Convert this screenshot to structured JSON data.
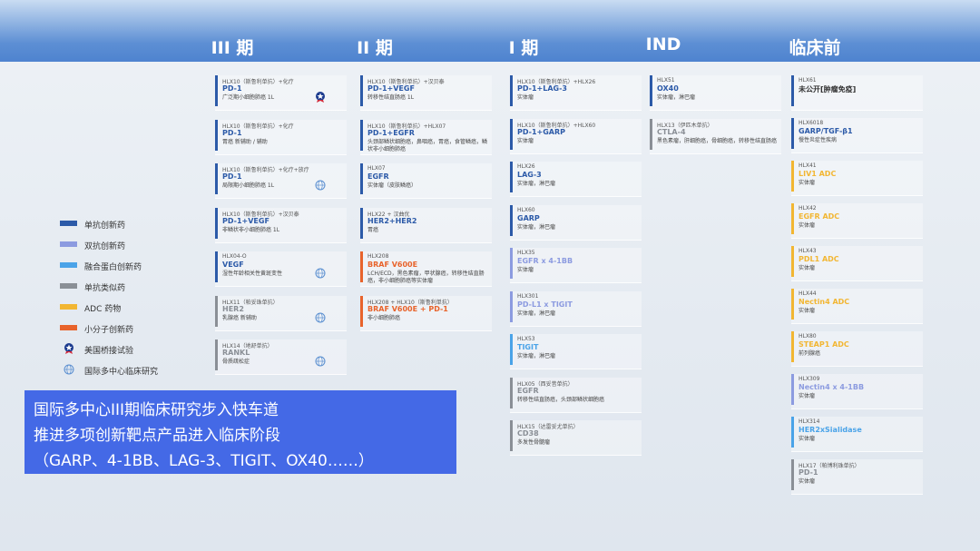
{
  "phases": [
    {
      "title": "III 期",
      "cards": [
        {
          "name": "HLX10（斯鲁利单抗）+化疗",
          "target": "PD-1",
          "indication": "广泛期小细胞肺癌 1L",
          "color": "#2c5aa8",
          "badge": "bridge"
        },
        {
          "name": "HLX10（斯鲁利单抗）+化疗",
          "target": "PD-1",
          "indication": "胃癌 新辅助 / 辅助",
          "color": "#2c5aa8"
        },
        {
          "name": "HLX10（斯鲁利单抗）+化疗+放疗",
          "target": "PD-1",
          "indication": "局限期小细胞肺癌 1L",
          "color": "#2c5aa8",
          "badge": "intl"
        },
        {
          "name": "HLX10（斯鲁利单抗）+汉贝泰",
          "target": "PD-1+VEGF",
          "indication": "非鳞状非小细胞肺癌 1L",
          "color": "#2c5aa8"
        },
        {
          "name": "HLX04-O",
          "target": "VEGF",
          "indication": "湿性年龄相关性黄斑变性",
          "color": "#2c5aa8",
          "badge": "intl"
        },
        {
          "name": "HLX11（帕妥珠单抗）",
          "target": "HER2",
          "indication": "乳腺癌 新辅助",
          "color": "#8a8f96",
          "badge": "intl"
        },
        {
          "name": "HLX14（地舒单抗）",
          "target": "RANKL",
          "indication": "骨质疏松症",
          "color": "#8a8f96",
          "badge": "intl"
        }
      ]
    },
    {
      "title": "II 期",
      "cards": [
        {
          "name": "HLX10（斯鲁利单抗）+汉贝泰",
          "target": "PD-1+VEGF",
          "indication": "转移性结直肠癌 1L",
          "color": "#2c5aa8"
        },
        {
          "name": "HLX10（斯鲁利单抗）+HLX07",
          "target": "PD-1+EGFR",
          "indication": "头颈部鳞状细胞癌，鼻咽癌，胃癌，食管鳞癌，鳞状非小细胞肺癌",
          "color": "#2c5aa8"
        },
        {
          "name": "HLX07",
          "target": "EGFR",
          "indication": "实体瘤（皮肤鳞癌）",
          "color": "#2c5aa8"
        },
        {
          "name": "HLX22 + 汉曲优",
          "target": "HER2+HER2",
          "indication": "胃癌",
          "color": "#2c5aa8"
        },
        {
          "name": "HLX208",
          "target": "BRAF V600E",
          "indication": "LCH/ECD，黑色素瘤，甲状腺癌，转移性结直肠癌，非小细胞肺癌等实体瘤",
          "color": "#e8632b"
        },
        {
          "name": "HLX208 + HLX10（斯鲁利单抗）",
          "target": "BRAF V600E + PD-1",
          "indication": "非小细胞肺癌",
          "color": "#e8632b"
        }
      ]
    },
    {
      "title": "I 期",
      "cards": [
        {
          "name": "HLX10（斯鲁利单抗）+HLX26",
          "target": "PD-1+LAG-3",
          "indication": "实体瘤",
          "color": "#2c5aa8"
        },
        {
          "name": "HLX10（斯鲁利单抗）+HLX60",
          "target": "PD-1+GARP",
          "indication": "实体瘤",
          "color": "#2c5aa8"
        },
        {
          "name": "HLX26",
          "target": "LAG-3",
          "indication": "实体瘤，淋巴瘤",
          "color": "#2c5aa8"
        },
        {
          "name": "HLX60",
          "target": "GARP",
          "indication": "实体瘤，淋巴瘤",
          "color": "#2c5aa8"
        },
        {
          "name": "HLX35",
          "target": "EGFR x 4-1BB",
          "indication": "实体瘤",
          "color": "#8c9be0"
        },
        {
          "name": "HLX301",
          "target": "PD-L1 x TIGIT",
          "indication": "实体瘤，淋巴瘤",
          "color": "#8c9be0"
        },
        {
          "name": "HLX53",
          "target": "TIGIT",
          "indication": "实体瘤，淋巴瘤",
          "color": "#4aa3e8"
        },
        {
          "name": "HLX05（西妥昔单抗）",
          "target": "EGFR",
          "indication": "转移性结直肠癌，头颈部鳞状细胞癌",
          "color": "#8a8f96"
        },
        {
          "name": "HLX15（达雷妥尤单抗）",
          "target": "CD38",
          "indication": "多发性骨髓瘤",
          "color": "#8a8f96"
        }
      ]
    },
    {
      "title": "IND",
      "cards": [
        {
          "name": "HLX51",
          "target": "OX40",
          "indication": "实体瘤，淋巴瘤",
          "color": "#2c5aa8"
        },
        {
          "name": "HLX13（伊匹木单抗）",
          "target": "CTLA-4",
          "indication": "黑色素瘤，肝细胞癌，骨细胞癌，转移性结直肠癌",
          "color": "#8a8f96"
        }
      ]
    },
    {
      "title": "临床前",
      "cards": [
        {
          "name": "HLX61",
          "target": "未公开[肿瘤免疫]",
          "color": "#2c5aa8"
        },
        {
          "name": "HLX6018",
          "target": "GARP/TGF-β1",
          "indication": "慢性炎症性疾病",
          "color": "#2c5aa8"
        },
        {
          "name": "HLX41",
          "target": "LIV1 ADC",
          "indication": "实体瘤",
          "color": "#f2b632"
        },
        {
          "name": "HLX42",
          "target": "EGFR ADC",
          "indication": "实体瘤",
          "color": "#f2b632"
        },
        {
          "name": "HLX43",
          "target": "PDL1 ADC",
          "indication": "实体瘤",
          "color": "#f2b632"
        },
        {
          "name": "HLX44",
          "target": "Nectin4 ADC",
          "indication": "实体瘤",
          "color": "#f2b632"
        },
        {
          "name": "HLX80",
          "target": "STEAP1 ADC",
          "indication": "前列腺癌",
          "color": "#f2b632"
        },
        {
          "name": "HLX309",
          "target": "Nectin4 x 4-1BB",
          "indication": "实体瘤",
          "color": "#8c9be0"
        },
        {
          "name": "HLX314",
          "target": "HER2xSialidase",
          "indication": "实体瘤",
          "color": "#4aa3e8"
        },
        {
          "name": "HLX17（帕博利珠单抗）",
          "target": "PD-1",
          "indication": "实体瘤",
          "color": "#8a8f96"
        }
      ]
    }
  ],
  "legend": [
    {
      "label": "单抗创新药",
      "color": "#2c5aa8"
    },
    {
      "label": "双抗创新药",
      "color": "#8c9be0"
    },
    {
      "label": "融合蛋白创新药",
      "color": "#4aa3e8"
    },
    {
      "label": "单抗类似药",
      "color": "#8a8f96"
    },
    {
      "label": "ADC 药物",
      "color": "#f2b632"
    },
    {
      "label": "小分子创新药",
      "color": "#e8632b"
    },
    {
      "label": "美国桥接试验",
      "badge": "bridge"
    },
    {
      "label": "国际多中心临床研究",
      "badge": "intl"
    }
  ],
  "banner": [
    "国际多中心III期临床研究步入快车道",
    "推进多项创新靶点产品进入临床阶段",
    "（GARP、4-1BB、LAG-3、TIGIT、OX40……）"
  ]
}
